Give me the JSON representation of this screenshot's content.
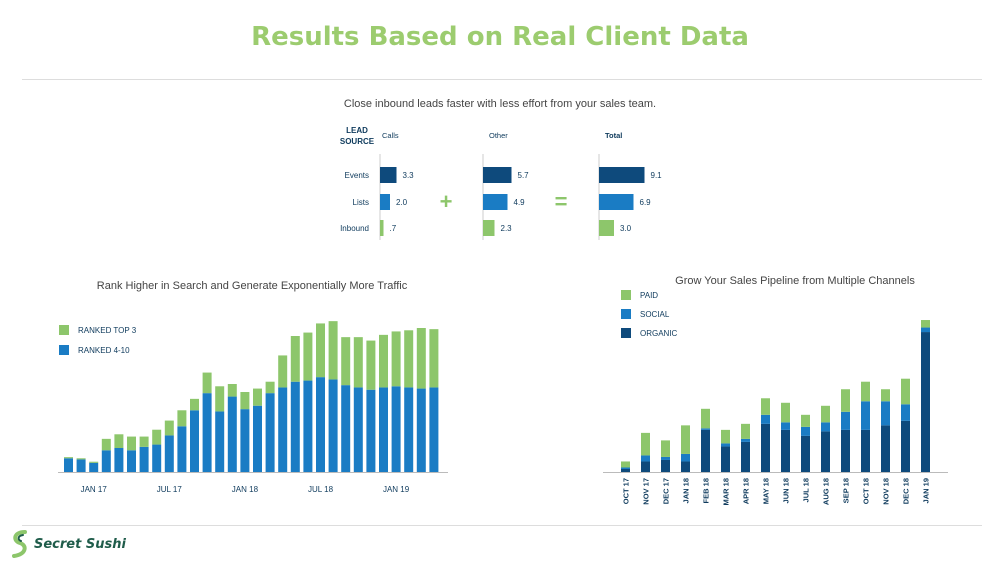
{
  "page": {
    "title": "Results Based on Real Client Data",
    "brand": "Secret Sushi"
  },
  "colors": {
    "dark_blue": "#0e4a7c",
    "mid_blue": "#1a7cc4",
    "green": "#8dc66b",
    "title_green": "#9ccc6f"
  },
  "chart_data": [
    {
      "type": "bar",
      "title": "Close inbound leads faster with less effort from your sales team.",
      "row_header": "LEAD SOURCE",
      "categories": [
        "Events",
        "Lists",
        "Inbound"
      ],
      "operators": [
        "+",
        "="
      ],
      "series": [
        {
          "name": "Calls",
          "values": [
            3.3,
            2.0,
            0.7
          ],
          "labels": [
            "3.3",
            "2.0",
            ".7"
          ]
        },
        {
          "name": "Other",
          "values": [
            5.7,
            4.9,
            2.3
          ],
          "labels": [
            "5.7",
            "4.9",
            "2.3"
          ]
        },
        {
          "name": "Total",
          "values": [
            9.1,
            6.9,
            3.0
          ],
          "labels": [
            "9.1",
            "6.9",
            "3.0"
          ]
        }
      ],
      "xlim": [
        0,
        10
      ]
    },
    {
      "type": "bar",
      "stacked": true,
      "title": "Rank Higher in Search and Generate Exponentially More Traffic",
      "x_tick_labels": [
        "JAN 17",
        "JUL 17",
        "JAN 18",
        "JUL 18",
        "JAN 19"
      ],
      "x_tick_indices": [
        2,
        8,
        14,
        20,
        26
      ],
      "legend_position": "top-left",
      "series": [
        {
          "name": "RANKED 4-10",
          "values": [
            12,
            11,
            8,
            19,
            21,
            19,
            22,
            24,
            32,
            40,
            54,
            69,
            53,
            66,
            55,
            58,
            69,
            74,
            79,
            80,
            83,
            81,
            76,
            74,
            72,
            74,
            75,
            74,
            73,
            74
          ]
        },
        {
          "name": "RANKED TOP 3",
          "values": [
            1,
            1,
            1,
            10,
            12,
            12,
            9,
            13,
            13,
            14,
            10,
            18,
            22,
            11,
            15,
            15,
            10,
            28,
            40,
            42,
            47,
            51,
            42,
            44,
            43,
            46,
            48,
            50,
            53,
            51
          ]
        }
      ],
      "ylim": [
        0,
        140
      ]
    },
    {
      "type": "bar",
      "stacked": true,
      "title": "Grow Your Sales Pipeline from Multiple Channels",
      "categories": [
        "OCT 17",
        "NOV 17",
        "DEC 17",
        "JAN 18",
        "FEB 18",
        "MAR 18",
        "APR 18",
        "MAY 18",
        "JUN 18",
        "JUL 18",
        "AUG 18",
        "SEP 18",
        "OCT 18",
        "NOV 18",
        "DEC 18",
        "JAN 19"
      ],
      "legend_position": "top-left",
      "series": [
        {
          "name": "ORGANIC",
          "values": [
            2,
            7,
            8,
            7,
            28,
            17,
            20,
            32,
            28,
            24,
            27,
            28,
            28,
            31,
            34,
            93
          ]
        },
        {
          "name": "SOCIAL",
          "values": [
            1,
            4,
            2,
            5,
            1,
            2,
            2,
            6,
            5,
            6,
            6,
            12,
            19,
            16,
            11,
            3
          ]
        },
        {
          "name": "PAID",
          "values": [
            4,
            15,
            11,
            19,
            13,
            9,
            10,
            11,
            13,
            8,
            11,
            15,
            13,
            8,
            17,
            5
          ]
        }
      ],
      "ylim": [
        0,
        105
      ]
    }
  ]
}
